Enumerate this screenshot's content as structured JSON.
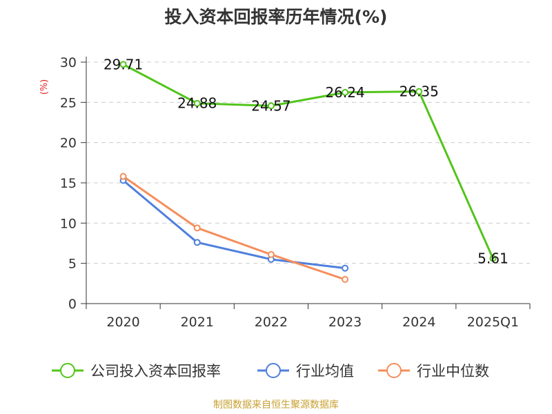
{
  "chart_data": {
    "type": "line",
    "title": "投入资本回报率历年情况(%)",
    "ylabel": "(%)",
    "xlabel": "",
    "categories": [
      "2020",
      "2021",
      "2022",
      "2023",
      "2024",
      "2025Q1"
    ],
    "ylim": [
      0,
      30
    ],
    "yticks": [
      0,
      5,
      10,
      15,
      20,
      25,
      30
    ],
    "grid": true,
    "legend_position": "bottom",
    "series": [
      {
        "name": "公司投入资本回报率",
        "color": "#52c41a",
        "values": [
          29.71,
          24.88,
          24.57,
          26.24,
          26.35,
          5.61
        ],
        "labels": [
          "29.71",
          "24.88",
          "24.57",
          "26.24",
          "26.35",
          "5.61"
        ]
      },
      {
        "name": "行业均值",
        "color": "#4e7fdc",
        "values": [
          15.3,
          7.6,
          5.5,
          4.4,
          null,
          null
        ]
      },
      {
        "name": "行业中位数",
        "color": "#f58d5a",
        "values": [
          15.8,
          9.4,
          6.1,
          3.0,
          null,
          null
        ]
      }
    ],
    "source": "制图数据来自恒生聚源数据库"
  }
}
